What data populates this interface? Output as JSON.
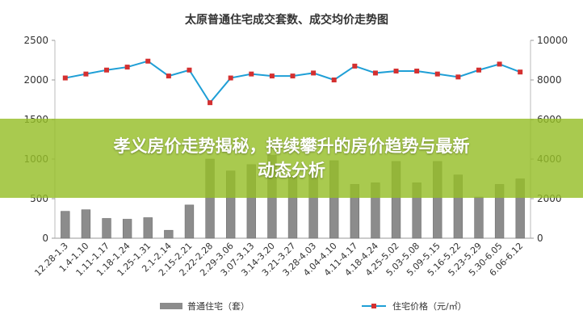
{
  "chart_data": {
    "type": "bar+line",
    "title": "太原普通住宅成交套数、成交均价走势图",
    "categories": [
      "12.28-1.3",
      "1.4-1.10",
      "1.11-1.17",
      "1.18-1.24",
      "1.25-1.31",
      "2.1-2.14",
      "2.15-2.21",
      "2.22-2.28",
      "2.29-3.06",
      "3.07-3.13",
      "3.14-3.20",
      "3.21-3.27",
      "3.28-4.03",
      "4.04-4.10",
      "4.11-4.17",
      "4.18-4.24",
      "4.25-5.02",
      "5.03-5.08",
      "5.09-5.15",
      "5.16-5.22",
      "5.23-5.29",
      "5.30-6.05",
      "6.06-6.12"
    ],
    "series": [
      {
        "name": "普通住宅（套）",
        "type": "bar",
        "axis": "left",
        "color": "#8c8c8c",
        "values": [
          340,
          360,
          250,
          240,
          260,
          100,
          420,
          1000,
          850,
          930,
          1050,
          800,
          860,
          980,
          680,
          700,
          970,
          700,
          970,
          800,
          520,
          680,
          750
        ]
      },
      {
        "name": "住宅价格（元/㎡）",
        "type": "line",
        "axis": "right",
        "color": "#1f9fd6",
        "values": [
          8100,
          8300,
          8500,
          8650,
          8950,
          8200,
          8500,
          6850,
          8100,
          8300,
          8200,
          8200,
          8350,
          8000,
          8700,
          8350,
          8450,
          8450,
          8300,
          8150,
          8500,
          8800,
          8400
        ]
      }
    ],
    "y_left": {
      "ylim": [
        0,
        2500
      ],
      "ticks": [
        "0",
        "500",
        "1000",
        "1500",
        "2000",
        "2500"
      ]
    },
    "y_right": {
      "ylim": [
        0,
        10000
      ],
      "ticks": [
        "0",
        "2000",
        "4000",
        "6000",
        "8000",
        "10000"
      ]
    },
    "legend_position": "bottom",
    "grid": false
  },
  "overlay": {
    "headline_line1": "孝义房价走势揭秘，持续攀升的房价趋势与最新",
    "headline_line2": "动态分析"
  }
}
